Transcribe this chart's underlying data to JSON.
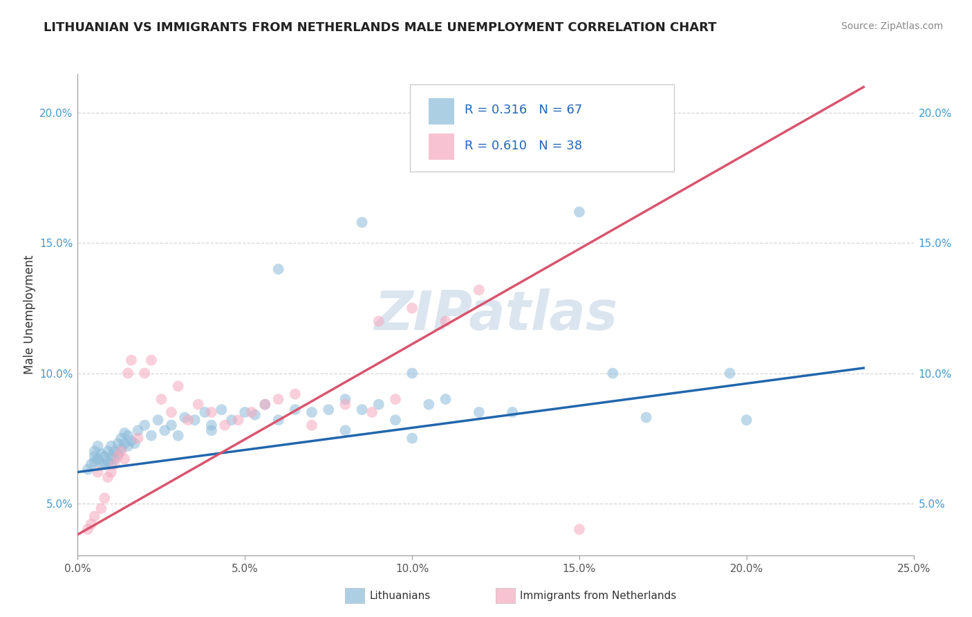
{
  "title": "LITHUANIAN VS IMMIGRANTS FROM NETHERLANDS MALE UNEMPLOYMENT CORRELATION CHART",
  "source": "Source: ZipAtlas.com",
  "ylabel": "Male Unemployment",
  "xlim": [
    0.0,
    0.25
  ],
  "ylim": [
    0.03,
    0.215
  ],
  "xticks": [
    0.0,
    0.05,
    0.1,
    0.15,
    0.2,
    0.25
  ],
  "xticklabels": [
    "0.0%",
    "5.0%",
    "10.0%",
    "15.0%",
    "20.0%",
    "25.0%"
  ],
  "yticks": [
    0.05,
    0.1,
    0.15,
    0.2
  ],
  "yticklabels": [
    "5.0%",
    "10.0%",
    "15.0%",
    "20.0%"
  ],
  "blue_color": "#8bbbd9",
  "pink_color": "#f5a8be",
  "blue_line_color": "#2166ac",
  "pink_line_color": "#d9546e",
  "watermark": "ZIPatlas",
  "blue_scatter_x": [
    0.003,
    0.004,
    0.005,
    0.005,
    0.005,
    0.006,
    0.006,
    0.007,
    0.007,
    0.008,
    0.008,
    0.009,
    0.009,
    0.01,
    0.01,
    0.01,
    0.011,
    0.011,
    0.012,
    0.012,
    0.013,
    0.013,
    0.014,
    0.014,
    0.015,
    0.015,
    0.016,
    0.017,
    0.018,
    0.02,
    0.022,
    0.024,
    0.026,
    0.028,
    0.03,
    0.032,
    0.035,
    0.038,
    0.04,
    0.043,
    0.046,
    0.05,
    0.053,
    0.056,
    0.06,
    0.065,
    0.07,
    0.075,
    0.08,
    0.085,
    0.09,
    0.095,
    0.1,
    0.105,
    0.11,
    0.12,
    0.13,
    0.15,
    0.16,
    0.17,
    0.195,
    0.2,
    0.085,
    0.1,
    0.08,
    0.06,
    0.04
  ],
  "blue_scatter_y": [
    0.063,
    0.065,
    0.066,
    0.068,
    0.07,
    0.067,
    0.072,
    0.065,
    0.069,
    0.065,
    0.068,
    0.066,
    0.07,
    0.065,
    0.068,
    0.072,
    0.07,
    0.067,
    0.069,
    0.073,
    0.071,
    0.075,
    0.073,
    0.077,
    0.072,
    0.076,
    0.074,
    0.073,
    0.078,
    0.08,
    0.076,
    0.082,
    0.078,
    0.08,
    0.076,
    0.083,
    0.082,
    0.085,
    0.08,
    0.086,
    0.082,
    0.085,
    0.084,
    0.088,
    0.082,
    0.086,
    0.085,
    0.086,
    0.09,
    0.086,
    0.088,
    0.082,
    0.1,
    0.088,
    0.09,
    0.085,
    0.085,
    0.162,
    0.1,
    0.083,
    0.1,
    0.082,
    0.158,
    0.075,
    0.078,
    0.14,
    0.078
  ],
  "pink_scatter_x": [
    0.003,
    0.004,
    0.005,
    0.006,
    0.007,
    0.008,
    0.009,
    0.01,
    0.011,
    0.012,
    0.013,
    0.014,
    0.015,
    0.016,
    0.018,
    0.02,
    0.022,
    0.025,
    0.028,
    0.03,
    0.033,
    0.036,
    0.04,
    0.044,
    0.048,
    0.052,
    0.056,
    0.06,
    0.065,
    0.07,
    0.08,
    0.088,
    0.095,
    0.1,
    0.11,
    0.12,
    0.09,
    0.15
  ],
  "pink_scatter_y": [
    0.04,
    0.042,
    0.045,
    0.062,
    0.048,
    0.052,
    0.06,
    0.062,
    0.065,
    0.068,
    0.07,
    0.067,
    0.1,
    0.105,
    0.075,
    0.1,
    0.105,
    0.09,
    0.085,
    0.095,
    0.082,
    0.088,
    0.085,
    0.08,
    0.082,
    0.085,
    0.088,
    0.09,
    0.092,
    0.08,
    0.088,
    0.085,
    0.09,
    0.125,
    0.12,
    0.132,
    0.12,
    0.04
  ],
  "blue_line_x": [
    0.0,
    0.235
  ],
  "blue_line_y": [
    0.062,
    0.102
  ],
  "pink_line_x": [
    0.0,
    0.235
  ],
  "pink_line_y": [
    0.038,
    0.21
  ]
}
